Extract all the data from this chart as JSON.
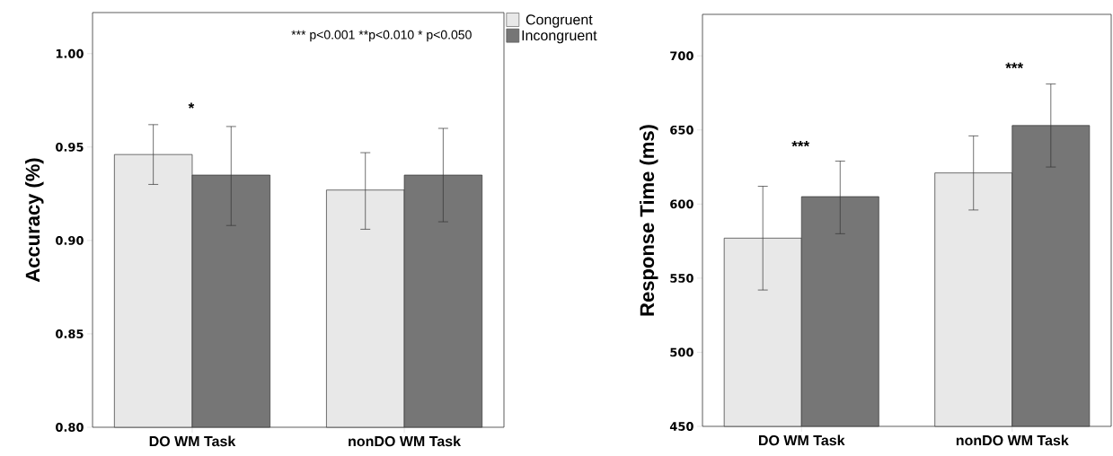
{
  "chart_data": [
    {
      "type": "bar",
      "ylabel": "Accuracy (%)",
      "categories": [
        "DO WM Task",
        "nonDO WM Task"
      ],
      "series": [
        {
          "name": "Congruent",
          "color": "#e8e8e8",
          "values": [
            0.946,
            0.927
          ],
          "errors": [
            [
              0.93,
              0.962
            ],
            [
              0.906,
              0.947
            ]
          ]
        },
        {
          "name": "Incongruent",
          "color": "#767676",
          "values": [
            0.935,
            0.935
          ],
          "errors": [
            [
              0.908,
              0.961
            ],
            [
              0.91,
              0.96
            ]
          ]
        }
      ],
      "ylim": [
        0.8,
        1.022
      ],
      "yticks": [
        {
          "value": 0.8,
          "label": "0.80"
        },
        {
          "value": 0.85,
          "label": "0.85"
        },
        {
          "value": 0.9,
          "label": "0.90"
        },
        {
          "value": 0.95,
          "label": "0.95"
        },
        {
          "value": 1.0,
          "label": "1.00"
        }
      ],
      "legend": "right",
      "grid": false,
      "annotations": [
        "*** p<0.001  **p<0.010  * p<0.050",
        "*"
      ]
    },
    {
      "type": "bar",
      "ylabel": "Response Time (ms)",
      "categories": [
        "DO WM Task",
        "nonDO WM Task"
      ],
      "series": [
        {
          "color": "#e8e8e8",
          "values": [
            577,
            621
          ],
          "errors": [
            [
              542,
              612
            ],
            [
              596,
              646
            ]
          ]
        },
        {
          "color": "#767676",
          "values": [
            605,
            653
          ],
          "errors": [
            [
              580,
              629
            ],
            [
              625,
              681
            ]
          ]
        }
      ],
      "ylim": [
        450,
        728
      ],
      "yticks": [
        450,
        500,
        550,
        600,
        650,
        700
      ],
      "legend": false,
      "grid": false,
      "annotations": [
        "***",
        "***"
      ]
    }
  ]
}
